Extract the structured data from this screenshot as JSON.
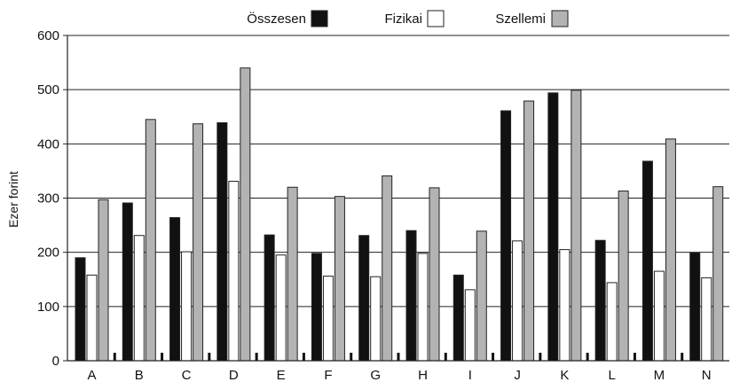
{
  "chart_data": {
    "type": "bar",
    "categories": [
      "A",
      "B",
      "C",
      "D",
      "E",
      "F",
      "G",
      "H",
      "I",
      "J",
      "K",
      "L",
      "M",
      "N"
    ],
    "series": [
      {
        "name": "Összesen",
        "values": [
          190,
          291,
          264,
          439,
          232,
          198,
          231,
          240,
          158,
          461,
          494,
          222,
          368,
          199
        ],
        "color": "#111111"
      },
      {
        "name": "Fizikai",
        "values": [
          158,
          231,
          201,
          331,
          195,
          156,
          155,
          198,
          131,
          221,
          205,
          144,
          165,
          153
        ],
        "color": "#ffffff"
      },
      {
        "name": "Szellemi",
        "values": [
          297,
          445,
          437,
          540,
          320,
          303,
          341,
          319,
          239,
          479,
          499,
          313,
          409,
          321
        ],
        "color": "#b3b3b3"
      }
    ],
    "title": "",
    "xlabel": "",
    "ylabel": "Ezer forint",
    "ylim": [
      0,
      600
    ],
    "yticks": [
      0,
      100,
      200,
      300,
      400,
      500,
      600
    ],
    "grid": true,
    "legend": "top"
  }
}
